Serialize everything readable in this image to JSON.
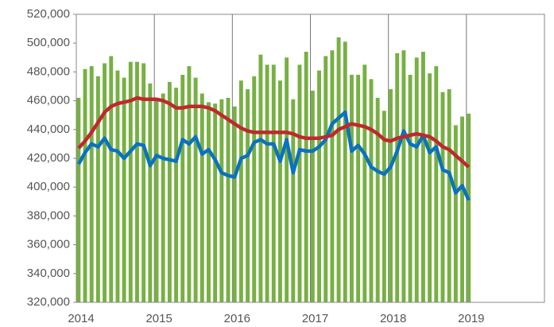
{
  "chart_data": {
    "type": "bar_line",
    "xlim": [
      2014,
      2020
    ],
    "xticks": [
      2014,
      2015,
      2016,
      2017,
      2018,
      2019
    ],
    "ylim": [
      320000,
      520000
    ],
    "yticks": [
      {
        "value": 320000,
        "label": "320,000"
      },
      {
        "value": 340000,
        "label": "340,000"
      },
      {
        "value": 360000,
        "label": "360,000"
      },
      {
        "value": 380000,
        "label": "380,000"
      },
      {
        "value": 400000,
        "label": "400,000"
      },
      {
        "value": 420000,
        "label": "420,000"
      },
      {
        "value": 440000,
        "label": "440,000"
      },
      {
        "value": 460000,
        "label": "460,000"
      },
      {
        "value": 480000,
        "label": "480,000"
      },
      {
        "value": 500000,
        "label": "500,000"
      },
      {
        "value": 520000,
        "label": "520,000"
      }
    ],
    "grid": "x",
    "x": [
      2014,
      2014.0833,
      2014.1667,
      2014.25,
      2014.3333,
      2014.4167,
      2014.5,
      2014.5833,
      2014.6667,
      2014.75,
      2014.8333,
      2014.9167,
      2015,
      2015.0833,
      2015.1667,
      2015.25,
      2015.3333,
      2015.4167,
      2015.5,
      2015.5833,
      2015.6667,
      2015.75,
      2015.8333,
      2015.9167,
      2016,
      2016.0833,
      2016.1667,
      2016.25,
      2016.3333,
      2016.4167,
      2016.5,
      2016.5833,
      2016.6667,
      2016.75,
      2016.8333,
      2016.9167,
      2017,
      2017.0833,
      2017.1667,
      2017.25,
      2017.3333,
      2017.4167,
      2017.5,
      2017.5833,
      2017.6667,
      2017.75,
      2017.8333,
      2017.9167,
      2018,
      2018.0833,
      2018.1667,
      2018.25,
      2018.3333,
      2018.4167,
      2018.5,
      2018.5833,
      2018.6667,
      2018.75,
      2018.8333,
      2018.9167,
      2019
    ],
    "series": [
      {
        "type": "bar",
        "color": "#77b043",
        "values": [
          462000,
          482000,
          484000,
          477000,
          486000,
          491000,
          481000,
          476000,
          487000,
          487000,
          486000,
          472000,
          462000,
          465000,
          473000,
          469000,
          478000,
          484000,
          476000,
          465000,
          459000,
          458000,
          461000,
          462000,
          456000,
          474000,
          468000,
          477000,
          492000,
          485000,
          485000,
          474000,
          490000,
          461000,
          485000,
          494000,
          467000,
          481000,
          491000,
          495000,
          504000,
          501000,
          478000,
          478000,
          485000,
          475000,
          462000,
          453000,
          468000,
          493000,
          495000,
          478000,
          490000,
          494000,
          479000,
          484000,
          466000,
          468000,
          443000,
          449000,
          451000
        ]
      },
      {
        "type": "line",
        "color": "#0b72bd",
        "values": [
          416000,
          424000,
          430000,
          428000,
          434000,
          426000,
          425000,
          420000,
          425000,
          430000,
          429000,
          415000,
          422000,
          420000,
          419000,
          418000,
          433000,
          430000,
          435000,
          423000,
          426000,
          419000,
          410000,
          408000,
          407000,
          420000,
          422000,
          431000,
          433000,
          430000,
          430000,
          418000,
          433000,
          410000,
          426000,
          425000,
          425000,
          428000,
          433000,
          444000,
          448000,
          452000,
          425000,
          429000,
          423000,
          414000,
          411000,
          409000,
          414000,
          425000,
          439000,
          430000,
          428000,
          436000,
          424000,
          428000,
          412000,
          410000,
          396000,
          401000,
          391000
        ]
      },
      {
        "type": "line",
        "color": "#c0282d",
        "values": [
          427000,
          432000,
          438000,
          445000,
          452000,
          456000,
          458000,
          459000,
          460000,
          462000,
          461000,
          461000,
          461000,
          460000,
          458000,
          455000,
          455000,
          456000,
          456000,
          456000,
          455000,
          453000,
          450000,
          447000,
          444000,
          441000,
          439000,
          438000,
          438000,
          438000,
          438000,
          438000,
          438000,
          437000,
          435000,
          434000,
          434000,
          434000,
          435000,
          436000,
          440000,
          442000,
          444000,
          443000,
          442000,
          440000,
          437000,
          433000,
          432000,
          434000,
          435000,
          436000,
          437000,
          436000,
          435000,
          432000,
          428000,
          426000,
          422000,
          418000,
          414000
        ]
      }
    ]
  }
}
